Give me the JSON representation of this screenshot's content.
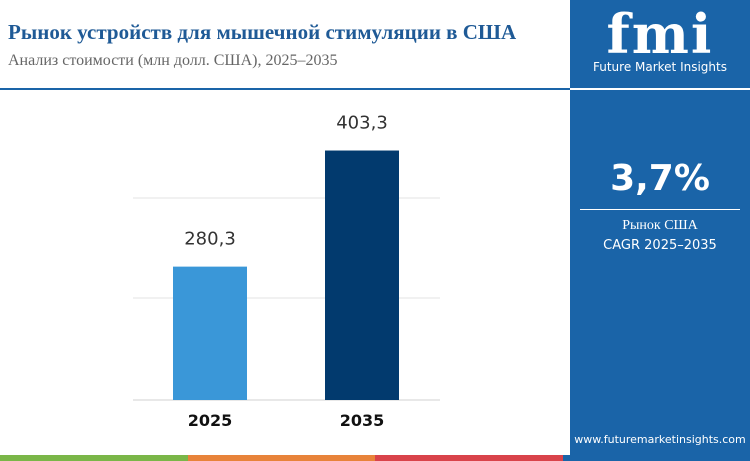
{
  "header": {
    "title": "Рынок устройств для мышечной стимуляции в США",
    "subtitle": "Анализ стоимости (млн долл. США), 2025–2035"
  },
  "chart_data": {
    "type": "bar",
    "categories": [
      "2025",
      "2035"
    ],
    "values": [
      280.3,
      403.3
    ],
    "value_labels": [
      "280,3",
      "403,3"
    ],
    "colors": [
      "#3a97d8",
      "#023a6e"
    ],
    "ylim": [
      139,
      460
    ]
  },
  "sidebar": {
    "logo": "fmi",
    "brand": "Future Market Insights",
    "cagr": "3,7%",
    "region": "Рынок США",
    "cagr_label": "CAGR 2025–2035",
    "url": "www.futuremarketinsights.com"
  }
}
